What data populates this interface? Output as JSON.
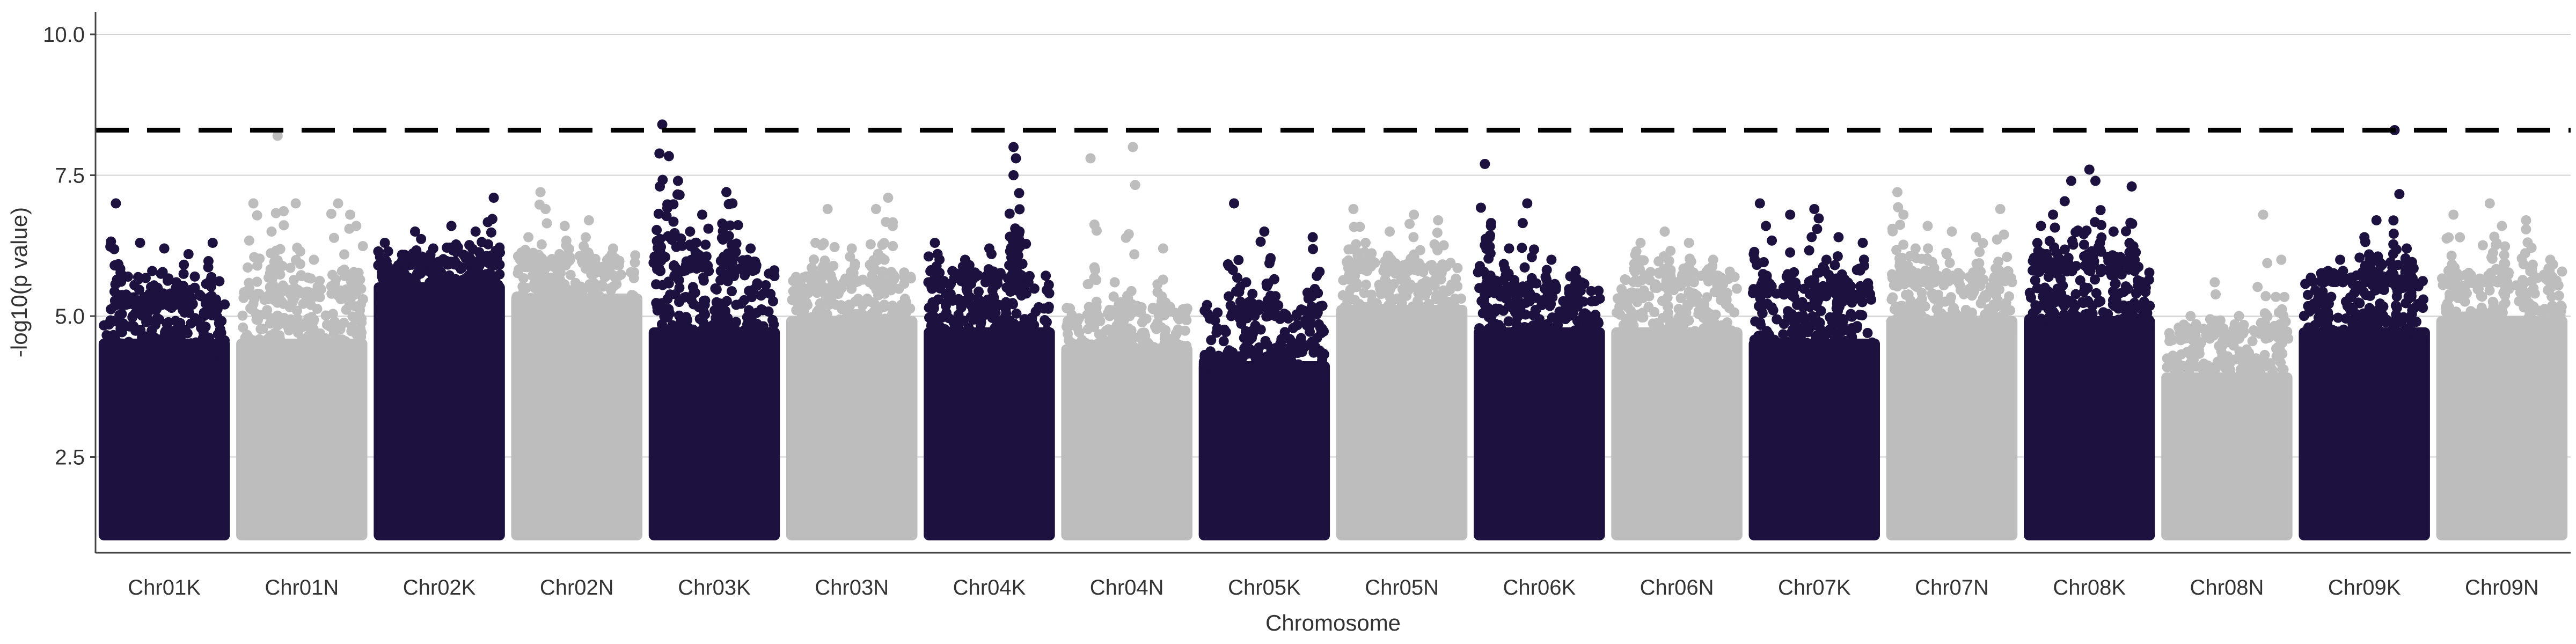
{
  "chart_data": {
    "type": "scatter",
    "subtype": "manhattan",
    "title": "",
    "xlabel": "Chromosome",
    "ylabel": "-log10(p value)",
    "ylim": [
      0.8,
      10.4
    ],
    "yticks": [
      2.5,
      5.0,
      7.5,
      10.0
    ],
    "ytick_labels": [
      "2.5",
      "5.0",
      "7.5",
      "10.0"
    ],
    "grid": "horizontal-major",
    "threshold": 8.3,
    "colors": {
      "dark": "#1d1140",
      "light": "#bdbdbd",
      "threshold": "#000000",
      "grid": "#d0d0d0",
      "axis": "#444444",
      "text": "#333333"
    },
    "categories": [
      "Chr01K",
      "Chr01N",
      "Chr02K",
      "Chr02N",
      "Chr03K",
      "Chr03N",
      "Chr04K",
      "Chr04N",
      "Chr05K",
      "Chr05N",
      "Chr06K",
      "Chr06N",
      "Chr07K",
      "Chr07N",
      "Chr08K",
      "Chr08N",
      "Chr09K",
      "Chr09N"
    ],
    "series": [
      {
        "category": "Chr01K",
        "color": "dark",
        "bulk_top": 4.6,
        "cloud_top": 5.2,
        "peaks": [
          [
            0.1,
            7.0
          ],
          [
            0.3,
            6.3
          ],
          [
            0.5,
            6.2
          ],
          [
            0.7,
            6.1
          ],
          [
            0.9,
            6.3
          ],
          [
            0.4,
            5.8
          ],
          [
            0.6,
            5.6
          ],
          [
            0.2,
            5.7
          ]
        ]
      },
      {
        "category": "Chr01N",
        "color": "light",
        "bulk_top": 4.6,
        "cloud_top": 5.3,
        "peaks": [
          [
            0.1,
            7.0
          ],
          [
            0.25,
            6.5
          ],
          [
            0.3,
            8.2
          ],
          [
            0.45,
            7.0
          ],
          [
            0.8,
            7.0
          ],
          [
            0.9,
            6.8
          ],
          [
            0.95,
            6.6
          ],
          [
            0.6,
            6.0
          ]
        ]
      },
      {
        "category": "Chr02K",
        "color": "dark",
        "bulk_top": 5.6,
        "cloud_top": 5.9,
        "peaks": [
          [
            0.05,
            6.3
          ],
          [
            0.2,
            6.0
          ],
          [
            0.3,
            6.5
          ],
          [
            0.6,
            6.6
          ],
          [
            0.8,
            6.5
          ],
          [
            0.95,
            7.1
          ],
          [
            0.45,
            6.2
          ]
        ]
      },
      {
        "category": "Chr02N",
        "color": "light",
        "bulk_top": 5.4,
        "cloud_top": 5.9,
        "peaks": [
          [
            0.2,
            7.2
          ],
          [
            0.4,
            6.6
          ],
          [
            0.6,
            6.7
          ],
          [
            0.8,
            6.2
          ],
          [
            0.1,
            6.4
          ]
        ]
      },
      {
        "category": "Chr03K",
        "color": "dark",
        "bulk_top": 4.8,
        "cloud_top": 5.8,
        "peaks": [
          [
            0.05,
            7.3
          ],
          [
            0.07,
            8.4
          ],
          [
            0.2,
            7.4
          ],
          [
            0.4,
            6.8
          ],
          [
            0.6,
            7.2
          ],
          [
            0.65,
            7.0
          ],
          [
            0.3,
            6.5
          ],
          [
            0.8,
            6.2
          ]
        ]
      },
      {
        "category": "Chr03N",
        "color": "light",
        "bulk_top": 5.0,
        "cloud_top": 5.6,
        "peaks": [
          [
            0.3,
            6.9
          ],
          [
            0.7,
            6.9
          ],
          [
            0.8,
            7.1
          ],
          [
            0.5,
            6.2
          ],
          [
            0.2,
            6.3
          ]
        ]
      },
      {
        "category": "Chr04K",
        "color": "dark",
        "bulk_top": 4.8,
        "cloud_top": 5.6,
        "peaks": [
          [
            0.05,
            6.3
          ],
          [
            0.5,
            6.2
          ],
          [
            0.7,
            8.0
          ],
          [
            0.72,
            7.8
          ],
          [
            0.7,
            7.5
          ],
          [
            0.75,
            6.5
          ],
          [
            0.3,
            6.0
          ]
        ]
      },
      {
        "category": "Chr04N",
        "color": "light",
        "bulk_top": 4.5,
        "cloud_top": 5.0,
        "peaks": [
          [
            0.2,
            7.8
          ],
          [
            0.55,
            8.0
          ],
          [
            0.8,
            6.2
          ],
          [
            0.4,
            5.6
          ]
        ]
      },
      {
        "category": "Chr05K",
        "color": "dark",
        "bulk_top": 4.2,
        "cloud_top": 5.0,
        "peaks": [
          [
            0.25,
            7.0
          ],
          [
            0.5,
            6.5
          ],
          [
            0.55,
            6.0
          ],
          [
            0.9,
            6.4
          ],
          [
            0.35,
            5.6
          ]
        ]
      },
      {
        "category": "Chr05N",
        "color": "light",
        "bulk_top": 5.2,
        "cloud_top": 5.8,
        "peaks": [
          [
            0.1,
            6.9
          ],
          [
            0.4,
            6.5
          ],
          [
            0.6,
            6.8
          ],
          [
            0.8,
            6.7
          ],
          [
            0.2,
            6.3
          ]
        ]
      },
      {
        "category": "Chr06K",
        "color": "dark",
        "bulk_top": 4.8,
        "cloud_top": 5.4,
        "peaks": [
          [
            0.05,
            7.7
          ],
          [
            0.1,
            6.6
          ],
          [
            0.4,
            7.0
          ],
          [
            0.6,
            6.0
          ],
          [
            0.8,
            5.8
          ],
          [
            0.25,
            6.2
          ]
        ]
      },
      {
        "category": "Chr06N",
        "color": "light",
        "bulk_top": 4.8,
        "cloud_top": 5.6,
        "peaks": [
          [
            0.2,
            6.3
          ],
          [
            0.4,
            6.5
          ],
          [
            0.6,
            6.3
          ],
          [
            0.8,
            6.0
          ]
        ]
      },
      {
        "category": "Chr07K",
        "color": "dark",
        "bulk_top": 4.6,
        "cloud_top": 5.4,
        "peaks": [
          [
            0.05,
            7.0
          ],
          [
            0.1,
            6.6
          ],
          [
            0.3,
            6.8
          ],
          [
            0.5,
            6.9
          ],
          [
            0.7,
            6.4
          ],
          [
            0.9,
            6.3
          ],
          [
            0.6,
            6.0
          ]
        ]
      },
      {
        "category": "Chr07N",
        "color": "light",
        "bulk_top": 5.0,
        "cloud_top": 5.6,
        "peaks": [
          [
            0.05,
            7.2
          ],
          [
            0.1,
            6.8
          ],
          [
            0.3,
            6.6
          ],
          [
            0.5,
            6.5
          ],
          [
            0.7,
            6.4
          ],
          [
            0.9,
            6.9
          ],
          [
            0.2,
            6.2
          ]
        ]
      },
      {
        "category": "Chr08K",
        "color": "dark",
        "bulk_top": 5.0,
        "cloud_top": 5.8,
        "peaks": [
          [
            0.1,
            6.6
          ],
          [
            0.2,
            6.8
          ],
          [
            0.35,
            7.4
          ],
          [
            0.5,
            7.6
          ],
          [
            0.55,
            7.4
          ],
          [
            0.85,
            7.3
          ],
          [
            0.7,
            6.5
          ]
        ]
      },
      {
        "category": "Chr08N",
        "color": "light",
        "bulk_top": 4.0,
        "cloud_top": 4.6,
        "peaks": [
          [
            0.2,
            5.0
          ],
          [
            0.4,
            5.6
          ],
          [
            0.6,
            5.0
          ],
          [
            0.8,
            6.8
          ],
          [
            0.95,
            6.0
          ]
        ]
      },
      {
        "category": "Chr09K",
        "color": "dark",
        "bulk_top": 4.8,
        "cloud_top": 5.6,
        "peaks": [
          [
            0.3,
            6.0
          ],
          [
            0.5,
            6.4
          ],
          [
            0.6,
            6.7
          ],
          [
            0.75,
            8.3
          ],
          [
            0.85,
            6.2
          ],
          [
            0.2,
            5.8
          ]
        ]
      },
      {
        "category": "Chr09N",
        "color": "light",
        "bulk_top": 5.0,
        "cloud_top": 5.6,
        "peaks": [
          [
            0.1,
            6.8
          ],
          [
            0.4,
            7.0
          ],
          [
            0.5,
            6.6
          ],
          [
            0.7,
            6.7
          ],
          [
            0.9,
            6.0
          ]
        ]
      }
    ]
  }
}
